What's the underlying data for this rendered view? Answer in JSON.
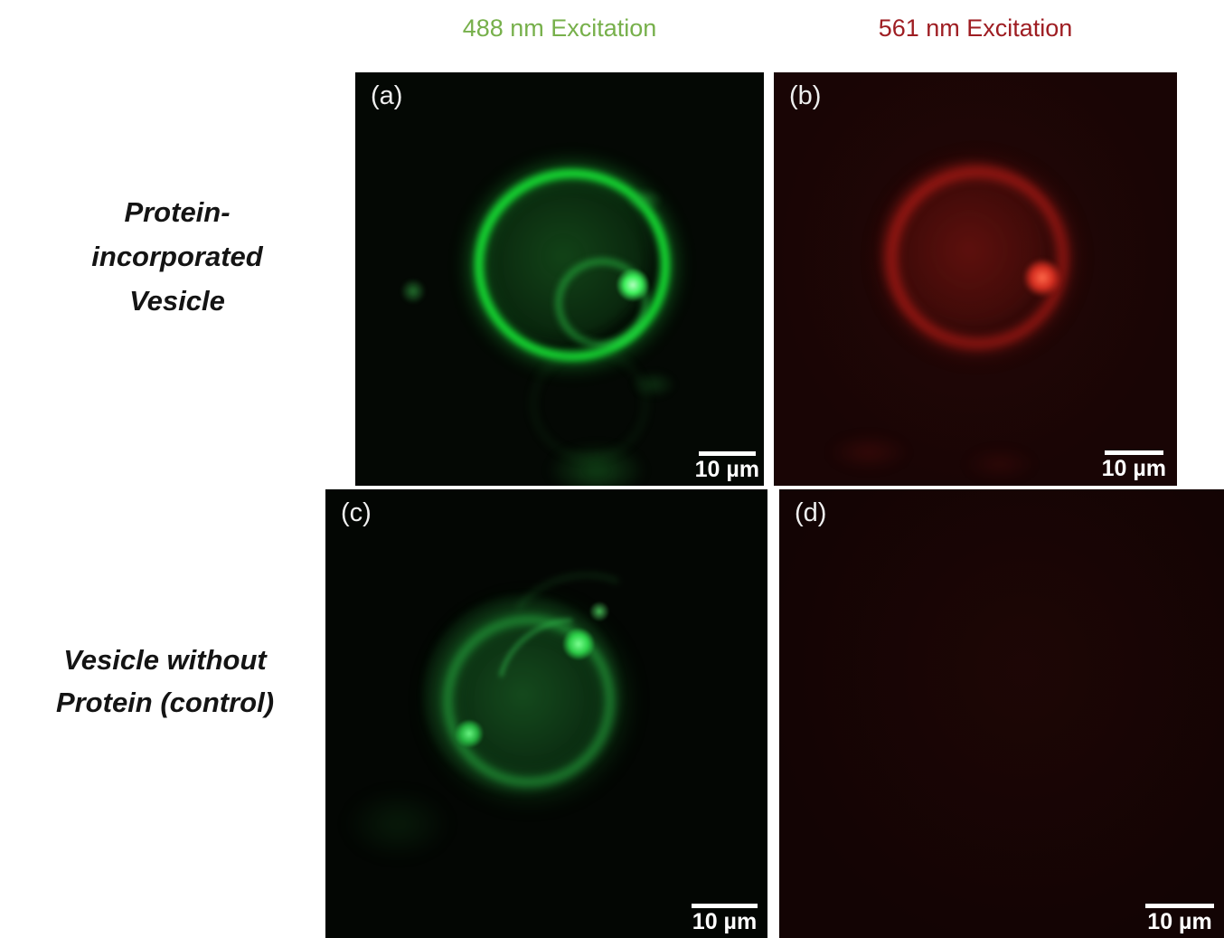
{
  "columns": [
    {
      "label": "488 nm Excitation",
      "color": "#77b04b"
    },
    {
      "label": "561 nm Excitation",
      "color": "#9e1d22"
    }
  ],
  "rows": [
    {
      "lines": [
        "Protein-",
        "incorporated",
        "Vesicle"
      ]
    },
    {
      "lines": [
        "Vesicle without",
        "Protein (control)"
      ]
    }
  ],
  "panels": [
    {
      "label": "(a)",
      "scale_bar_label": "10 µm"
    },
    {
      "label": "(b)",
      "scale_bar_label": "10 µm"
    },
    {
      "label": "(c)",
      "scale_bar_label": "10 µm"
    },
    {
      "label": "(d)",
      "scale_bar_label": "10 µm"
    }
  ],
  "colors": {
    "green_fluorescence": "#16dd33",
    "red_fluorescence": "#cd1e19",
    "scale_bar": "#ffffff",
    "panel_background_green_channel": "#040804",
    "panel_background_red_channel": "#190505"
  }
}
